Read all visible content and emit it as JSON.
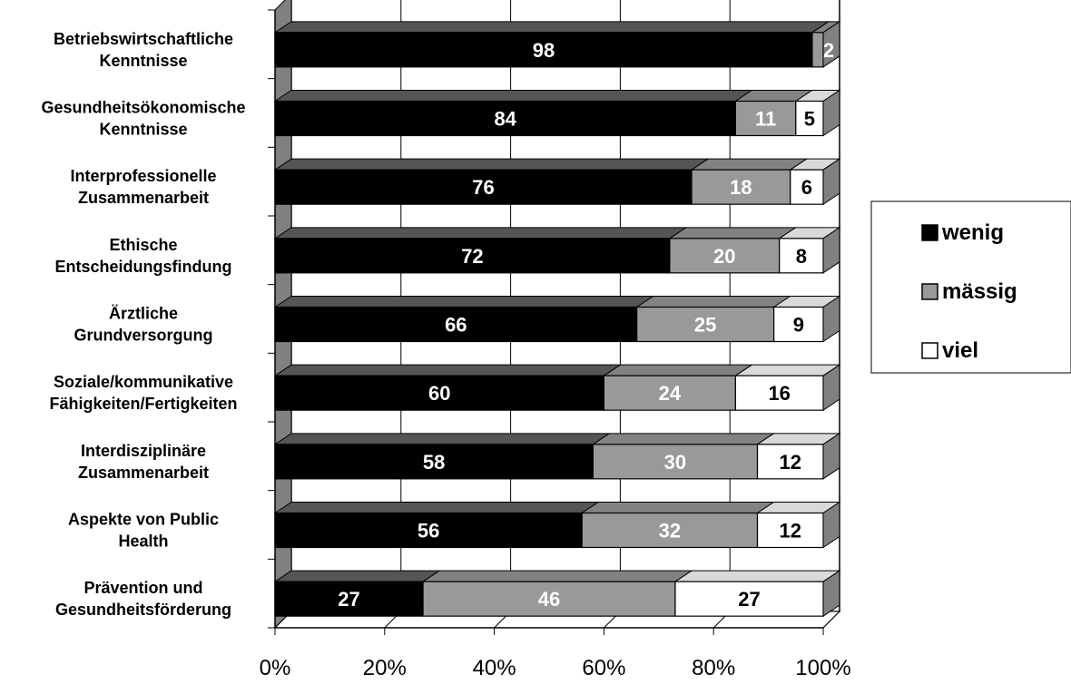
{
  "chart_data": {
    "type": "bar",
    "orientation": "horizontal",
    "stacked": "percent",
    "three_d": true,
    "categories": [
      "Betriebswirtschaftliche Kenntnisse",
      "Gesundheitsökonomische Kenntnisse",
      "Interprofessionelle Zusammenarbeit",
      "Ethische Entscheidungsfindung",
      "Ärztliche Grundversorgung",
      "Soziale/kommunikative Fähigkeiten/Fertigkeiten",
      "Interdisziplinäre Zusammenarbeit",
      "Aspekte von Public Health",
      "Prävention und Gesundheitsförderung"
    ],
    "category_lines": [
      [
        "Betriebswirtschaftliche",
        "Kenntnisse"
      ],
      [
        "Gesundheitsökonomische",
        "Kenntnisse"
      ],
      [
        "Interprofessionelle",
        "Zusammenarbeit"
      ],
      [
        "Ethische",
        "Entscheidungsfindung"
      ],
      [
        "Ärztliche",
        "Grundversorgung"
      ],
      [
        "Soziale/kommunikative",
        "Fähigkeiten/Fertigkeiten"
      ],
      [
        "Interdisziplinäre",
        "Zusammenarbeit"
      ],
      [
        "Aspekte von Public",
        "Health"
      ],
      [
        "Prävention und",
        "Gesundheitsförderung"
      ]
    ],
    "series": [
      {
        "name": "wenig",
        "color": "#000000",
        "label_color": "#ffffff",
        "values": [
          98,
          84,
          76,
          72,
          66,
          60,
          58,
          56,
          27
        ]
      },
      {
        "name": "mässig",
        "color": "#999999",
        "label_color": "#ffffff",
        "values": [
          2,
          11,
          18,
          20,
          25,
          24,
          30,
          32,
          46
        ]
      },
      {
        "name": "viel",
        "color": "#ffffff",
        "label_color": "#000000",
        "values": [
          0,
          5,
          6,
          8,
          9,
          16,
          12,
          12,
          27
        ]
      }
    ],
    "data_labels": [
      [
        "98",
        "2",
        ""
      ],
      [
        "84",
        "11",
        "5"
      ],
      [
        "76",
        "18",
        "6"
      ],
      [
        "72",
        "20",
        "8"
      ],
      [
        "66",
        "25",
        "9"
      ],
      [
        "60",
        "24",
        "16"
      ],
      [
        "58",
        "30",
        "12"
      ],
      [
        "56",
        "32",
        "12"
      ],
      [
        "27",
        "46",
        "27"
      ]
    ],
    "x_ticks": [
      "0%",
      "20%",
      "40%",
      "60%",
      "80%",
      "100%"
    ],
    "xlim": [
      0,
      100
    ],
    "grid": true,
    "legend_position": "right"
  }
}
